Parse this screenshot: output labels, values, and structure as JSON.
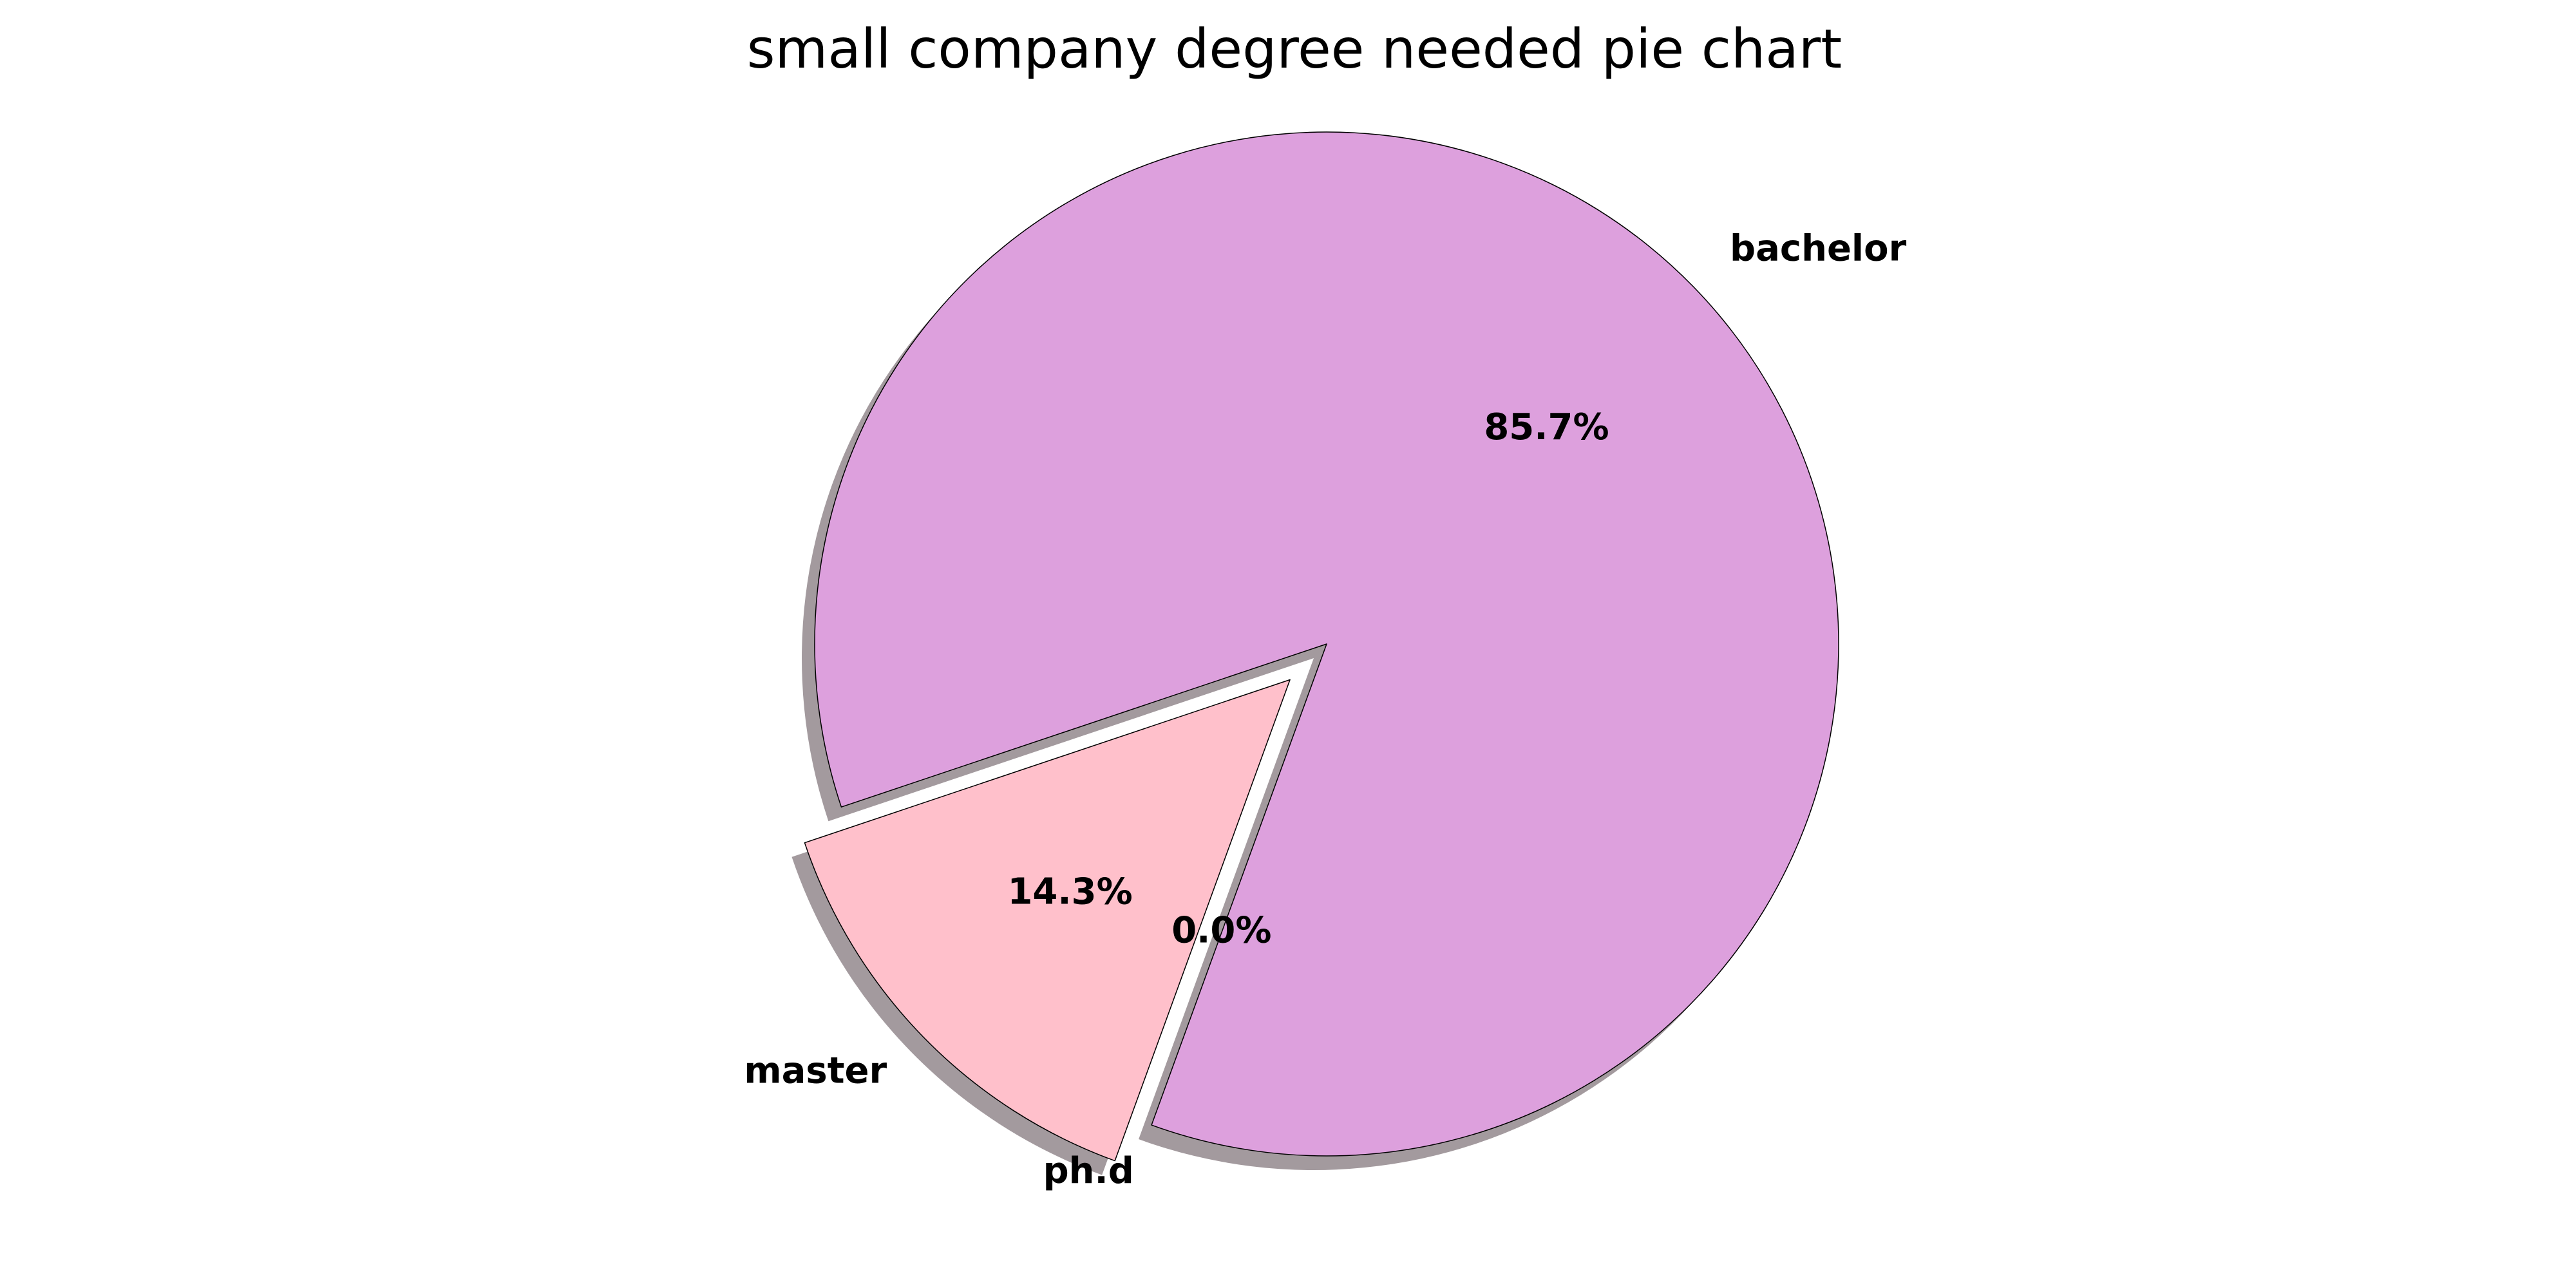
{
  "chart_data": {
    "type": "pie",
    "title": "small company degree needed pie chart",
    "slices": [
      {
        "label": "bachelor",
        "value": 6,
        "percent_label": "85.7%",
        "color": "#dda0dd",
        "explode": 0
      },
      {
        "label": "master",
        "value": 1,
        "percent_label": "14.3%",
        "color": "#ffc0cb",
        "explode": 0.1
      },
      {
        "label": "ph.d",
        "value": 0,
        "percent_label": "0.0%",
        "color": "#b0e0e6",
        "explode": 0
      }
    ],
    "start_angle_deg": 250,
    "shadow": true,
    "edge_color": "#000000",
    "shadow_color": "#a39a9e"
  }
}
